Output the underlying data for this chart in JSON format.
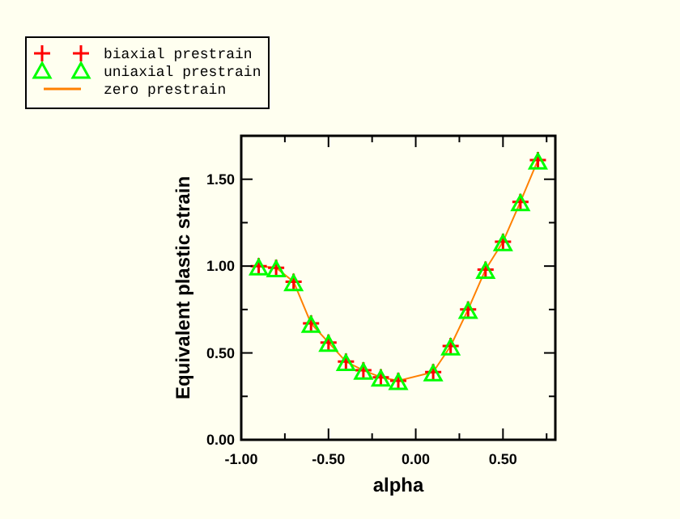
{
  "chart_data": {
    "type": "line",
    "xlabel": "alpha",
    "ylabel": "Equivalent plastic strain",
    "x": [
      -0.9,
      -0.8,
      -0.7,
      -0.6,
      -0.5,
      -0.4,
      -0.3,
      -0.2,
      -0.1,
      0.1,
      0.2,
      0.3,
      0.4,
      0.5,
      0.6,
      0.7
    ],
    "series": [
      {
        "name": "biaxial prestrain",
        "type": "scatter",
        "marker": "cross",
        "color": "#ff0000",
        "values": [
          1.0,
          0.99,
          0.91,
          0.67,
          0.56,
          0.45,
          0.4,
          0.36,
          0.34,
          0.39,
          0.54,
          0.75,
          0.98,
          1.14,
          1.37,
          1.61
        ]
      },
      {
        "name": "uniaxial prestrain",
        "type": "scatter",
        "marker": "triangle",
        "color": "#00ff00",
        "values": [
          0.99,
          0.98,
          0.9,
          0.66,
          0.55,
          0.44,
          0.39,
          0.35,
          0.33,
          0.38,
          0.53,
          0.74,
          0.97,
          1.13,
          1.36,
          1.6
        ]
      },
      {
        "name": "zero prestrain",
        "type": "line",
        "marker": "none",
        "color": "#ff8000",
        "values": [
          1.0,
          0.99,
          0.91,
          0.67,
          0.56,
          0.45,
          0.4,
          0.36,
          0.34,
          0.39,
          0.54,
          0.75,
          0.98,
          1.14,
          1.37,
          1.61
        ]
      }
    ],
    "xlim": [
      -1.0,
      0.8
    ],
    "xticks": [
      {
        "value": -1.0,
        "label": "-1.00"
      },
      {
        "value": -0.75,
        "label": null
      },
      {
        "value": -0.5,
        "label": "-0.50"
      },
      {
        "value": -0.25,
        "label": null
      },
      {
        "value": 0,
        "label": "0.00"
      },
      {
        "value": 0.25,
        "label": null
      },
      {
        "value": 0.5,
        "label": "0.50"
      },
      {
        "value": 0.75,
        "label": null
      }
    ],
    "ylim": [
      0,
      1.75
    ],
    "yticks": [
      {
        "value": 0,
        "label": "0.00"
      },
      {
        "value": 0.25,
        "label": null
      },
      {
        "value": 0.5,
        "label": "0.50"
      },
      {
        "value": 0.75,
        "label": null
      },
      {
        "value": 1.0,
        "label": "1.00"
      },
      {
        "value": 1.25,
        "label": null
      },
      {
        "value": 1.5,
        "label": "1.50"
      }
    ],
    "grid": false,
    "legend": "top left"
  }
}
